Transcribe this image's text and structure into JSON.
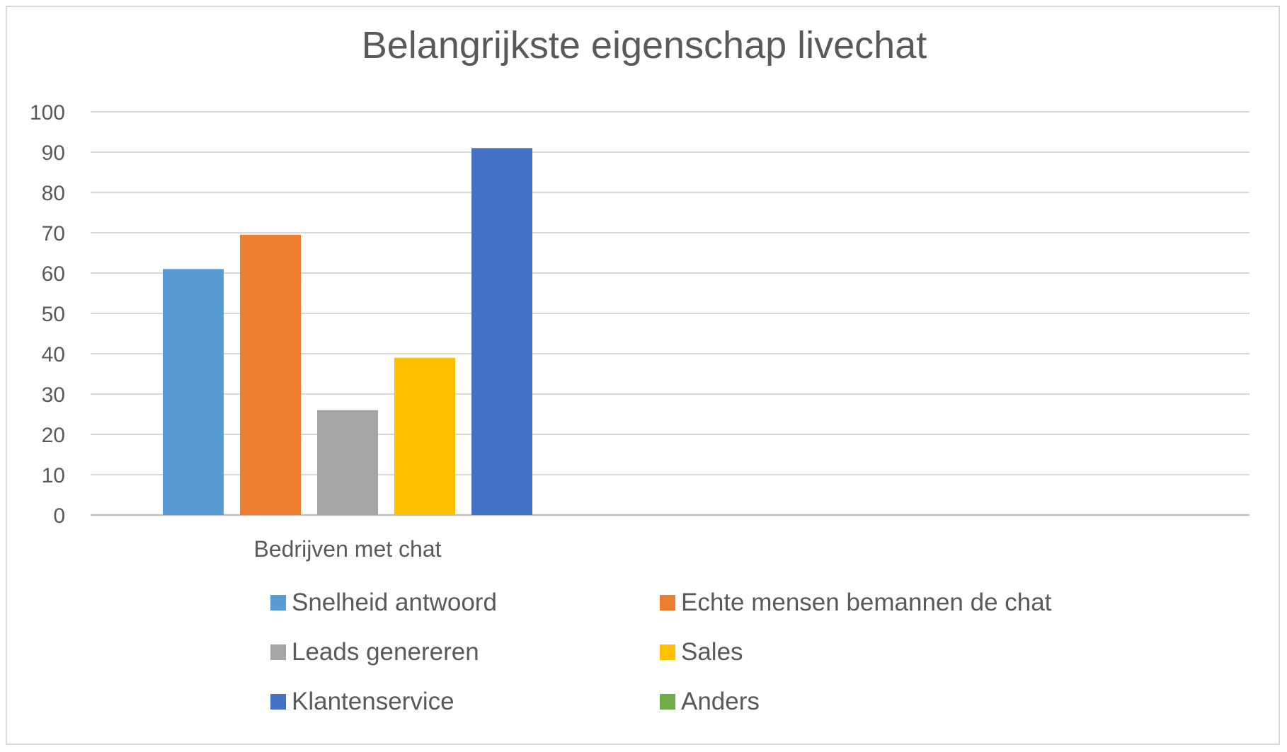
{
  "chart_data": {
    "type": "bar",
    "title": "Belangrijkste eigenschap livechat",
    "categories": [
      "Bedrijven met chat"
    ],
    "series": [
      {
        "name": "Snelheid antwoord",
        "values": [
          61
        ],
        "color": "#5B9BD5"
      },
      {
        "name": "Echte mensen bemannen de chat",
        "values": [
          69.5
        ],
        "color": "#ED7D31"
      },
      {
        "name": "Leads genereren",
        "values": [
          26
        ],
        "color": "#A5A5A5"
      },
      {
        "name": "Sales",
        "values": [
          39
        ],
        "color": "#FFC000"
      },
      {
        "name": "Klantenservice",
        "values": [
          91
        ],
        "color": "#4472C4"
      },
      {
        "name": "Anders",
        "values": [
          0
        ],
        "color": "#70AD47"
      }
    ],
    "yticks": [
      "0",
      "10",
      "20",
      "30",
      "40",
      "50",
      "60",
      "70",
      "80",
      "90",
      "100"
    ],
    "ylim": [
      0,
      100
    ],
    "grid": true,
    "legend_position": "bottom",
    "xlabel": "",
    "ylabel": ""
  }
}
